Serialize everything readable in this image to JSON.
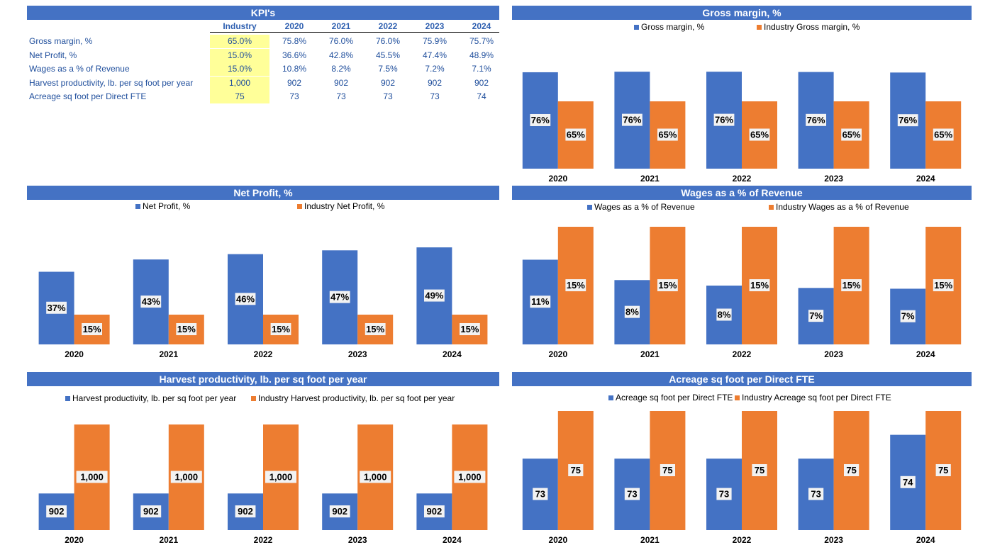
{
  "kpi": {
    "title": "KPI's",
    "columns": [
      "Industry",
      "2020",
      "2021",
      "2022",
      "2023",
      "2024"
    ],
    "rows": [
      {
        "label": "Gross margin, %",
        "values": [
          "65.0%",
          "75.8%",
          "76.0%",
          "76.0%",
          "75.9%",
          "75.7%"
        ]
      },
      {
        "label": "Net Profit, %",
        "values": [
          "15.0%",
          "36.6%",
          "42.8%",
          "45.5%",
          "47.4%",
          "48.9%"
        ]
      },
      {
        "label": "Wages as a % of Revenue",
        "values": [
          "15.0%",
          "10.8%",
          "8.2%",
          "7.5%",
          "7.2%",
          "7.1%"
        ]
      },
      {
        "label": "Harvest productivity, lb. per sq foot per year",
        "values": [
          "1,000",
          "902",
          "902",
          "902",
          "902",
          "902"
        ]
      },
      {
        "label": "Acreage sq foot per Direct FTE",
        "values": [
          "75",
          "73",
          "73",
          "73",
          "73",
          "74"
        ]
      }
    ]
  },
  "colors": {
    "blue": "#4472c4",
    "orange": "#ed7d31",
    "header": "#4472c4",
    "industry_cell": "#ffff99"
  },
  "chart_data": [
    {
      "id": "gross",
      "type": "bar",
      "title": "Gross margin, %",
      "categories": [
        "2020",
        "2021",
        "2022",
        "2023",
        "2024"
      ],
      "series": [
        {
          "name": "Gross margin, %",
          "values": [
            75.8,
            76.0,
            76.0,
            75.9,
            75.7
          ],
          "labels": [
            "76%",
            "76%",
            "76%",
            "76%",
            "76%"
          ]
        },
        {
          "name": "Industry Gross margin, %",
          "values": [
            65,
            65,
            65,
            65,
            65
          ],
          "labels": [
            "65%",
            "65%",
            "65%",
            "65%",
            "65%"
          ]
        }
      ],
      "ylim": [
        40,
        80
      ]
    },
    {
      "id": "netprofit",
      "type": "bar",
      "title": "Net Profit, %",
      "categories": [
        "2020",
        "2021",
        "2022",
        "2023",
        "2024"
      ],
      "series": [
        {
          "name": "Net Profit, %",
          "values": [
            36.6,
            42.8,
            45.5,
            47.4,
            48.9
          ],
          "labels": [
            "37%",
            "43%",
            "46%",
            "47%",
            "49%"
          ]
        },
        {
          "name": "Industry Net Profit, %",
          "values": [
            15,
            15,
            15,
            15,
            15
          ],
          "labels": [
            "15%",
            "15%",
            "15%",
            "15%",
            "15%"
          ]
        }
      ],
      "ylim": [
        0,
        60
      ]
    },
    {
      "id": "wages",
      "type": "bar",
      "title": "Wages as a % of Revenue",
      "categories": [
        "2020",
        "2021",
        "2022",
        "2023",
        "2024"
      ],
      "series": [
        {
          "name": "Wages as a % of Revenue",
          "values": [
            10.8,
            8.2,
            7.5,
            7.2,
            7.1
          ],
          "labels": [
            "11%",
            "8%",
            "8%",
            "7%",
            "7%"
          ]
        },
        {
          "name": "Industry Wages as a % of Revenue",
          "values": [
            15,
            15,
            15,
            15,
            15
          ],
          "labels": [
            "15%",
            "15%",
            "15%",
            "15%",
            "15%"
          ]
        }
      ],
      "ylim": [
        0,
        15
      ]
    },
    {
      "id": "harvest",
      "type": "bar",
      "title": "Harvest productivity, lb. per sq foot per year",
      "categories": [
        "2020",
        "2021",
        "2022",
        "2023",
        "2024"
      ],
      "series": [
        {
          "name": "Harvest productivity, lb. per sq foot per year",
          "values": [
            902,
            902,
            902,
            902,
            902
          ],
          "labels": [
            "902",
            "902",
            "902",
            "902",
            "902"
          ]
        },
        {
          "name": "Industry Harvest productivity, lb. per sq foot per year",
          "values": [
            1000,
            1000,
            1000,
            1000,
            1000
          ],
          "labels": [
            "1,000",
            "1,000",
            "1,000",
            "1,000",
            "1,000"
          ]
        }
      ],
      "ylim": [
        850,
        1000
      ]
    },
    {
      "id": "acreage",
      "type": "bar",
      "title": "Acreage sq foot per Direct FTE",
      "categories": [
        "2020",
        "2021",
        "2022",
        "2023",
        "2024"
      ],
      "series": [
        {
          "name": "Acreage sq foot per Direct FTE",
          "values": [
            73,
            73,
            73,
            73,
            74
          ],
          "labels": [
            "73",
            "73",
            "73",
            "73",
            "74"
          ]
        },
        {
          "name": "Industry Acreage sq foot per Direct FTE",
          "values": [
            75,
            75,
            75,
            75,
            75
          ],
          "labels": [
            "75",
            "75",
            "75",
            "75",
            "75"
          ]
        }
      ],
      "ylim": [
        70,
        75
      ]
    }
  ]
}
